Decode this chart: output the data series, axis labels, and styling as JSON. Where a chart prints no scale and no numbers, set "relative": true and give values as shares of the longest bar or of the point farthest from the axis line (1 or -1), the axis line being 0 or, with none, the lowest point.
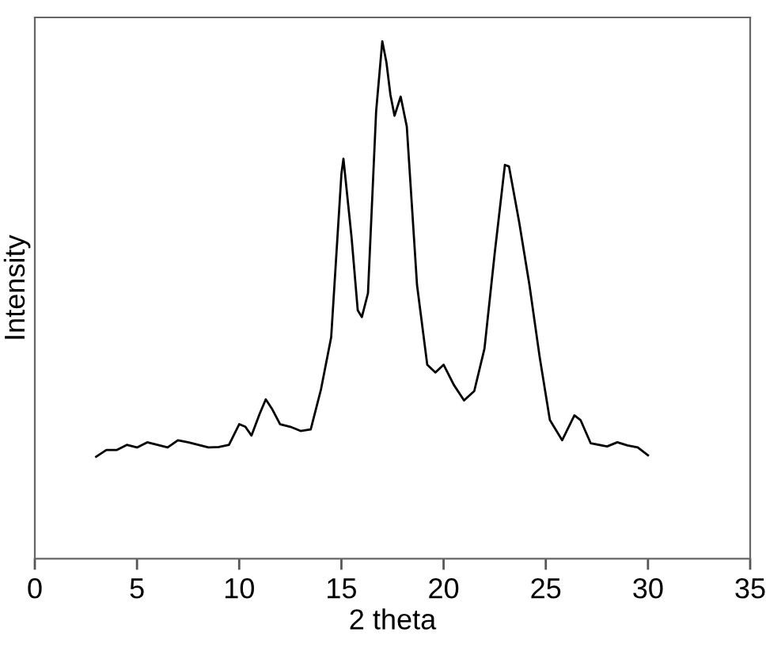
{
  "chart_data": {
    "type": "line",
    "xlabel": "2 theta",
    "ylabel": "Intensity",
    "relative": true,
    "xlim": [
      0,
      35
    ],
    "xticks": [
      0,
      5,
      10,
      15,
      20,
      25,
      30,
      35
    ],
    "grid": false,
    "legend": false,
    "marker": "none",
    "line_style": "solid",
    "series": [
      {
        "color": "#000000",
        "x": [
          3,
          3.5,
          4,
          4.5,
          5,
          5.5,
          6,
          6.5,
          7,
          7.5,
          8,
          8.5,
          9,
          9.5,
          10,
          10.3,
          10.6,
          11,
          11.3,
          11.6,
          12,
          12.5,
          13,
          13.5,
          14,
          14.5,
          15,
          15.1,
          15.5,
          15.8,
          16,
          16.3,
          16.7,
          17,
          17.2,
          17.4,
          17.6,
          17.9,
          18.2,
          18.7,
          19.2,
          19.6,
          20,
          20.5,
          21,
          21.5,
          22,
          22.5,
          23,
          23.2,
          23.7,
          24.2,
          24.7,
          25.2,
          25.8,
          26.4,
          26.7,
          27.2,
          28,
          28.5,
          29,
          29.5,
          30
        ],
        "values": [
          0.197,
          0.21,
          0.21,
          0.22,
          0.215,
          0.225,
          0.22,
          0.215,
          0.229,
          0.225,
          0.22,
          0.215,
          0.216,
          0.22,
          0.26,
          0.255,
          0.238,
          0.28,
          0.308,
          0.29,
          0.26,
          0.255,
          0.247,
          0.25,
          0.327,
          0.428,
          0.743,
          0.773,
          0.62,
          0.48,
          0.467,
          0.513,
          0.865,
          1.0,
          0.96,
          0.896,
          0.856,
          0.893,
          0.835,
          0.529,
          0.375,
          0.36,
          0.375,
          0.336,
          0.306,
          0.324,
          0.406,
          0.59,
          0.761,
          0.758,
          0.65,
          0.529,
          0.39,
          0.268,
          0.229,
          0.277,
          0.268,
          0.223,
          0.217,
          0.225,
          0.219,
          0.215,
          0.2
        ]
      }
    ]
  }
}
